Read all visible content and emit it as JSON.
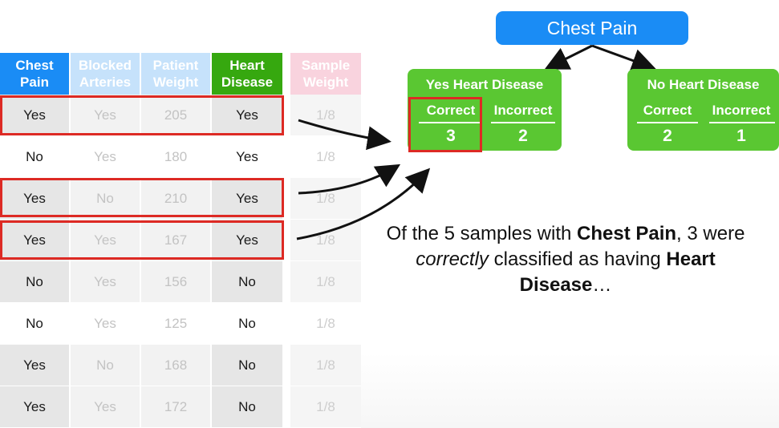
{
  "table": {
    "headers": [
      {
        "label": "Chest Pain",
        "bg": "#1a8cf5"
      },
      {
        "label": "Blocked Arteries",
        "bg": "#c6e2fb"
      },
      {
        "label": "Patient Weight",
        "bg": "#c6e2fb"
      },
      {
        "label": "Heart Disease",
        "bg": "#36a80f"
      },
      {
        "label": "Sample Weight",
        "bg": "#f9d3de"
      }
    ],
    "rows": [
      {
        "cells": [
          "Yes",
          "Yes",
          "205",
          "Yes",
          "1/8"
        ]
      },
      {
        "cells": [
          "No",
          "Yes",
          "180",
          "Yes",
          "1/8"
        ]
      },
      {
        "cells": [
          "Yes",
          "No",
          "210",
          "Yes",
          "1/8"
        ]
      },
      {
        "cells": [
          "Yes",
          "Yes",
          "167",
          "Yes",
          "1/8"
        ]
      },
      {
        "cells": [
          "No",
          "Yes",
          "156",
          "No",
          "1/8"
        ]
      },
      {
        "cells": [
          "No",
          "Yes",
          "125",
          "No",
          "1/8"
        ]
      },
      {
        "cells": [
          "Yes",
          "No",
          "168",
          "No",
          "1/8"
        ]
      },
      {
        "cells": [
          "Yes",
          "Yes",
          "172",
          "No",
          "1/8"
        ]
      }
    ]
  },
  "tree": {
    "root": "Chest Pain",
    "left": {
      "title": "Yes Heart Disease",
      "correct_label": "Correct",
      "incorrect_label": "Incorrect",
      "correct": "3",
      "incorrect": "2"
    },
    "right": {
      "title": "No Heart Disease",
      "correct_label": "Correct",
      "incorrect_label": "Incorrect",
      "correct": "2",
      "incorrect": "1"
    }
  },
  "caption": {
    "p1": "Of the 5 samples with ",
    "b1": "Chest Pain",
    "p2": ", 3 were ",
    "i1": "correctly",
    "p3": " classified as having ",
    "b2": "Heart Disease",
    "p4": "…"
  },
  "colors": {
    "highlight": "#dd2a24",
    "root": "#1a8cf5",
    "leaf": "#5ac732"
  }
}
